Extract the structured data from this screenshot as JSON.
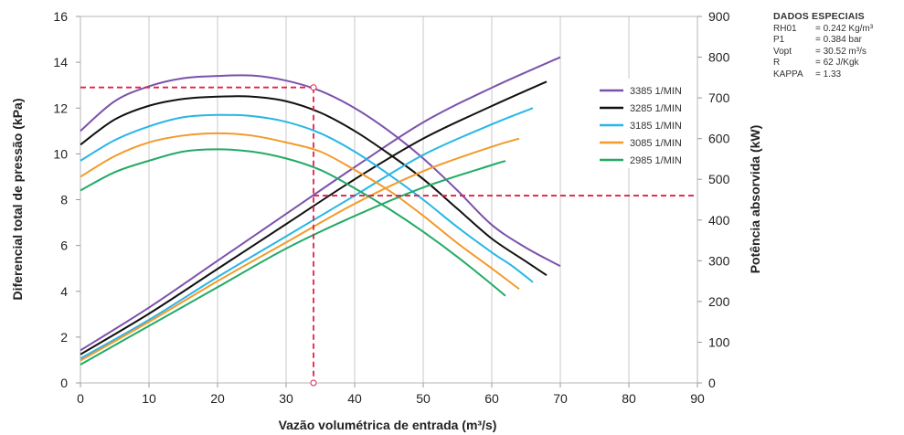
{
  "chart_data": {
    "type": "line",
    "xlabel": "Vazão volumétrica de entrada (m³/s)",
    "ylabel_left": "Diferencial total de pressão (kPa)",
    "ylabel_right": "Potência absorvida (kW)",
    "xlim": [
      0,
      90
    ],
    "ylim_left": [
      0,
      16
    ],
    "ylim_right": [
      0,
      900
    ],
    "xticks": [
      "0",
      "10",
      "20",
      "30",
      "40",
      "50",
      "60",
      "70",
      "80",
      "90"
    ],
    "yticks_left": [
      "0",
      "2",
      "4",
      "6",
      "8",
      "10",
      "12",
      "14",
      "16"
    ],
    "yticks_right": [
      "0",
      "100",
      "200",
      "300",
      "400",
      "500",
      "600",
      "700",
      "800",
      "900"
    ],
    "grid": "vertical",
    "legend_position": "right",
    "series": [
      {
        "name": "3385 1/MIN",
        "color": "#7b52ab",
        "pressure": {
          "x": [
            0,
            5,
            10,
            15,
            20,
            25,
            30,
            35,
            40,
            45,
            50,
            55,
            60,
            65,
            70
          ],
          "y": [
            11.0,
            12.3,
            12.95,
            13.3,
            13.4,
            13.42,
            13.2,
            12.75,
            12.0,
            11.0,
            9.8,
            8.4,
            6.9,
            5.9,
            5.1
          ]
        },
        "power": {
          "x": [
            0,
            10,
            20,
            30,
            40,
            50,
            60,
            70
          ],
          "y": [
            80,
            185,
            300,
            415,
            530,
            640,
            725,
            800
          ]
        }
      },
      {
        "name": "3285 1/MIN",
        "color": "#111111",
        "pressure": {
          "x": [
            0,
            5,
            10,
            15,
            20,
            25,
            30,
            35,
            40,
            45,
            50,
            55,
            60,
            65,
            68
          ],
          "y": [
            10.4,
            11.5,
            12.1,
            12.4,
            12.5,
            12.5,
            12.3,
            11.8,
            11.0,
            10.0,
            8.9,
            7.6,
            6.3,
            5.3,
            4.7
          ]
        },
        "power": {
          "x": [
            0,
            10,
            20,
            30,
            40,
            50,
            60,
            68
          ],
          "y": [
            70,
            170,
            280,
            390,
            500,
            600,
            680,
            740
          ]
        }
      },
      {
        "name": "3185 1/MIN",
        "color": "#27b6e6",
        "pressure": {
          "x": [
            0,
            5,
            10,
            15,
            20,
            25,
            30,
            35,
            40,
            45,
            50,
            55,
            60,
            63,
            66
          ],
          "y": [
            9.7,
            10.6,
            11.2,
            11.6,
            11.7,
            11.65,
            11.4,
            10.9,
            10.1,
            9.1,
            8.0,
            6.8,
            5.7,
            5.1,
            4.4
          ]
        },
        "power": {
          "x": [
            0,
            10,
            20,
            30,
            40,
            50,
            60,
            66
          ],
          "y": [
            60,
            155,
            260,
            360,
            460,
            560,
            635,
            675
          ]
        }
      },
      {
        "name": "3085 1/MIN",
        "color": "#f39a2b",
        "pressure": {
          "x": [
            0,
            5,
            10,
            15,
            20,
            25,
            30,
            35,
            40,
            45,
            50,
            55,
            60,
            64
          ],
          "y": [
            9.0,
            9.9,
            10.5,
            10.8,
            10.9,
            10.8,
            10.5,
            10.1,
            9.3,
            8.4,
            7.3,
            6.1,
            5.0,
            4.1
          ]
        },
        "power": {
          "x": [
            0,
            10,
            20,
            30,
            40,
            50,
            60,
            64
          ],
          "y": [
            55,
            150,
            250,
            345,
            440,
            520,
            580,
            600
          ]
        }
      },
      {
        "name": "2985 1/MIN",
        "color": "#22aa66",
        "pressure": {
          "x": [
            0,
            5,
            10,
            15,
            20,
            25,
            30,
            35,
            40,
            45,
            50,
            55,
            60,
            62
          ],
          "y": [
            8.4,
            9.2,
            9.7,
            10.1,
            10.2,
            10.1,
            9.8,
            9.3,
            8.5,
            7.6,
            6.6,
            5.5,
            4.3,
            3.8
          ]
        },
        "power": {
          "x": [
            0,
            10,
            20,
            30,
            40,
            50,
            60,
            62
          ],
          "y": [
            45,
            140,
            235,
            330,
            410,
            480,
            535,
            545
          ]
        }
      }
    ],
    "annotations": {
      "color": "#e0204a",
      "operating_flow_x": 34,
      "pressure_at_point": 12.9,
      "power_at_point": 460
    }
  },
  "specs": {
    "title": "DADOS ESPECIAIS",
    "rows": [
      {
        "key": "RH01",
        "value": "= 0.242 Kg/m³"
      },
      {
        "key": "P1",
        "value": "= 0.384 bar"
      },
      {
        "key": "Vopt",
        "value": "= 30.52 m³/s"
      },
      {
        "key": "R",
        "value": "= 62 J/Kgk"
      },
      {
        "key": "KAPPA",
        "value": "= 1.33"
      }
    ]
  }
}
